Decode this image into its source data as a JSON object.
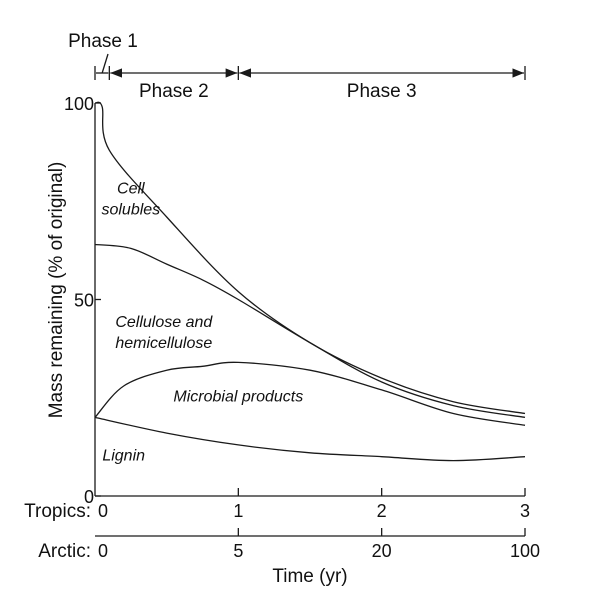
{
  "chart_data": {
    "type": "area",
    "ylabel": "Mass remaining (% of original)",
    "xlabel": "Time (yr)",
    "ylim": [
      0,
      100
    ],
    "xlim": [
      0,
      3
    ],
    "y_ticks": [
      {
        "value": 0,
        "label": "0"
      },
      {
        "value": 50,
        "label": "50"
      },
      {
        "value": 100,
        "label": "100"
      }
    ],
    "x_axes": [
      {
        "name": "Tropics:",
        "ticks": [
          {
            "value": 0,
            "label": "0"
          },
          {
            "value": 1,
            "label": "1"
          },
          {
            "value": 2,
            "label": "2"
          },
          {
            "value": 3,
            "label": "3"
          }
        ]
      },
      {
        "name": "Arctic:",
        "ticks": [
          {
            "value": 0,
            "label": "0"
          },
          {
            "value": 1,
            "label": "5"
          },
          {
            "value": 2,
            "label": "20"
          },
          {
            "value": 3,
            "label": "100"
          }
        ]
      }
    ],
    "phases": [
      {
        "label": "Phase 1",
        "start": 0,
        "end": 0.1
      },
      {
        "label": "Phase 2",
        "start": 0.1,
        "end": 1
      },
      {
        "label": "Phase 3",
        "start": 1,
        "end": 3
      }
    ],
    "boundaries": [
      {
        "name": "total",
        "points": [
          [
            0,
            100
          ],
          [
            0.05,
            99
          ],
          [
            0.1,
            88
          ],
          [
            0.5,
            71
          ],
          [
            1,
            52
          ],
          [
            1.5,
            39
          ],
          [
            2,
            30
          ],
          [
            2.5,
            24
          ],
          [
            3,
            21
          ]
        ]
      },
      {
        "name": "cell-solubles-lower",
        "points": [
          [
            0,
            64
          ],
          [
            0.25,
            63
          ],
          [
            0.5,
            59
          ],
          [
            0.75,
            55
          ],
          [
            1,
            50
          ],
          [
            1.5,
            39
          ],
          [
            2,
            29
          ],
          [
            2.5,
            23
          ],
          [
            3,
            20
          ]
        ]
      },
      {
        "name": "cellulose-lower",
        "points": [
          [
            0,
            20
          ],
          [
            0.2,
            28
          ],
          [
            0.5,
            32
          ],
          [
            0.75,
            33
          ],
          [
            1,
            34
          ],
          [
            1.5,
            32
          ],
          [
            2,
            27
          ],
          [
            2.5,
            21
          ],
          [
            3,
            18
          ]
        ]
      },
      {
        "name": "lignin-top",
        "points": [
          [
            0,
            20
          ],
          [
            0.5,
            16
          ],
          [
            1,
            13
          ],
          [
            1.5,
            11
          ],
          [
            2,
            10
          ],
          [
            2.5,
            9
          ],
          [
            3,
            10
          ]
        ]
      }
    ],
    "regions": [
      {
        "label_lines": [
          "Cell",
          "solubles"
        ],
        "x": 0.25,
        "y": 77
      },
      {
        "label_lines": [
          "Cellulose and",
          "hemicellulose"
        ],
        "x": 0.48,
        "y": 43
      },
      {
        "label_lines": [
          "Microbial products"
        ],
        "x": 1.0,
        "y": 24
      },
      {
        "label_lines": [
          "Lignin"
        ],
        "x": 0.2,
        "y": 9
      }
    ]
  }
}
